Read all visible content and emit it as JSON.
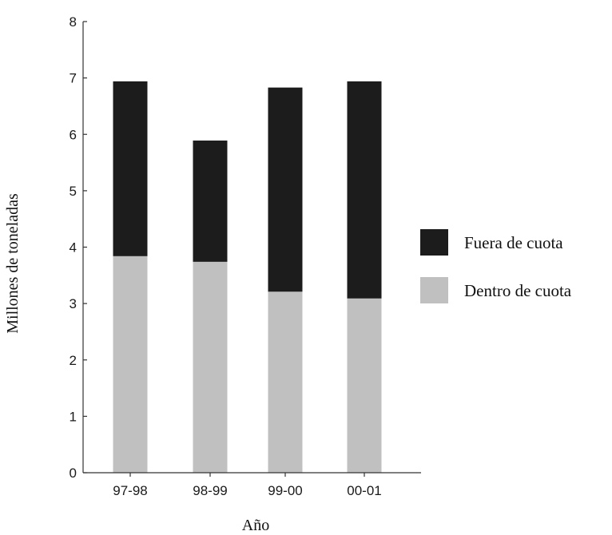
{
  "chart_data": {
    "type": "bar",
    "stacked": true,
    "title": "",
    "xlabel": "Año",
    "ylabel": "Millones de toneladas",
    "categories": [
      "97-98",
      "98-99",
      "99-00",
      "00-01"
    ],
    "series": [
      {
        "name": "Dentro de cuota",
        "values": [
          3.84,
          3.74,
          3.21,
          3.09
        ],
        "color": "#c0c0c0"
      },
      {
        "name": "Fuera de cuota",
        "values": [
          3.1,
          2.15,
          3.62,
          3.85
        ],
        "color": "#1c1c1c"
      }
    ],
    "ylim": [
      0,
      8
    ],
    "yticks": [
      "0",
      "1",
      "2",
      "3",
      "4",
      "5",
      "6",
      "7",
      "8"
    ],
    "grid": false,
    "legend": {
      "placement": "right",
      "items": [
        {
          "label": "Fuera de cuota",
          "color": "#1c1c1c"
        },
        {
          "label": "Dentro de cuota",
          "color": "#c0c0c0"
        }
      ]
    }
  }
}
